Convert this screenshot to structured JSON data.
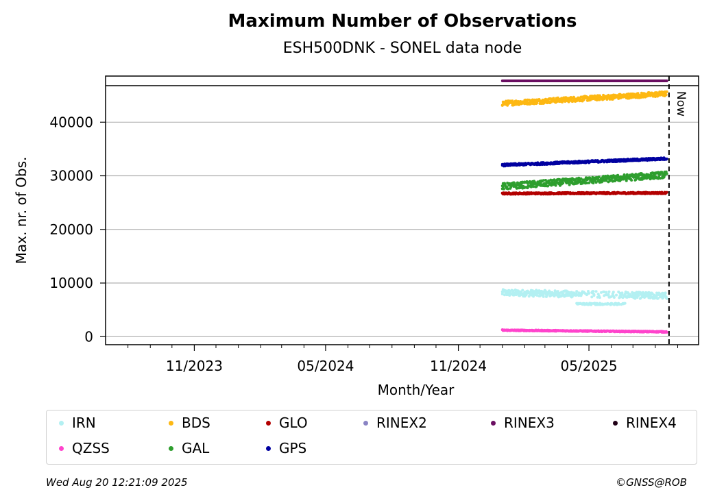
{
  "chart_data": {
    "type": "scatter",
    "title": "Maximum Number of Observations",
    "subtitle": "ESH500DNK - SONEL data node",
    "xlabel": "Month/Year",
    "ylabel": "Max. nr. of Obs.",
    "x_tick_labels": [
      "11/2023",
      "05/2024",
      "11/2024",
      "05/2025"
    ],
    "x_tick_dates": [
      "2023-11-01",
      "2024-05-01",
      "2024-11-01",
      "2025-05-01"
    ],
    "x_range": [
      "2023-07-01",
      "2025-09-30"
    ],
    "y_ticks": [
      0,
      10000,
      20000,
      30000,
      40000
    ],
    "ylim": [
      -1500,
      48600
    ],
    "now_date": "2025-08-20",
    "now_label": "Now",
    "grid": "horizontal",
    "legend_position": "bottom",
    "series": [
      {
        "name": "IRN",
        "color": "#b3f0f2",
        "start": "2025-01-01",
        "end": "2025-08-17",
        "level_start": 8200,
        "level_end": 7600,
        "spread": 1200,
        "dip_level": 6100
      },
      {
        "name": "BDS",
        "color": "#fdb813",
        "start": "2025-01-01",
        "end": "2025-08-17",
        "level_start": 43500,
        "level_end": 45300,
        "spread": 900
      },
      {
        "name": "GLO",
        "color": "#b30000",
        "start": "2025-01-01",
        "end": "2025-08-17",
        "level_start": 26700,
        "level_end": 26800,
        "spread": 300
      },
      {
        "name": "RINEX2",
        "color": "#8a84c4",
        "start": "",
        "end": "",
        "level_start": 0,
        "level_end": 0,
        "spread": 0
      },
      {
        "name": "RINEX3",
        "color": "#6b0f62",
        "start": "2025-01-01",
        "end": "2025-08-17",
        "level_start": 49500,
        "level_end": 49500,
        "spread": 0
      },
      {
        "name": "RINEX4",
        "color": "#200016",
        "start": "",
        "end": "",
        "level_start": 0,
        "level_end": 0,
        "spread": 0
      },
      {
        "name": "QZSS",
        "color": "#ff44cc",
        "start": "2025-01-01",
        "end": "2025-08-17",
        "level_start": 1200,
        "level_end": 900,
        "spread": 200
      },
      {
        "name": "GAL",
        "color": "#2e9e2e",
        "start": "2025-01-01",
        "end": "2025-08-17",
        "level_start": 28000,
        "level_end": 30200,
        "spread": 1200
      },
      {
        "name": "GPS",
        "color": "#0000a0",
        "start": "2025-01-01",
        "end": "2025-08-17",
        "level_start": 32000,
        "level_end": 33200,
        "spread": 400
      }
    ]
  },
  "footer": {
    "timestamp": "Wed Aug 20 12:21:09 2025",
    "credit": "©GNSS@ROB"
  }
}
